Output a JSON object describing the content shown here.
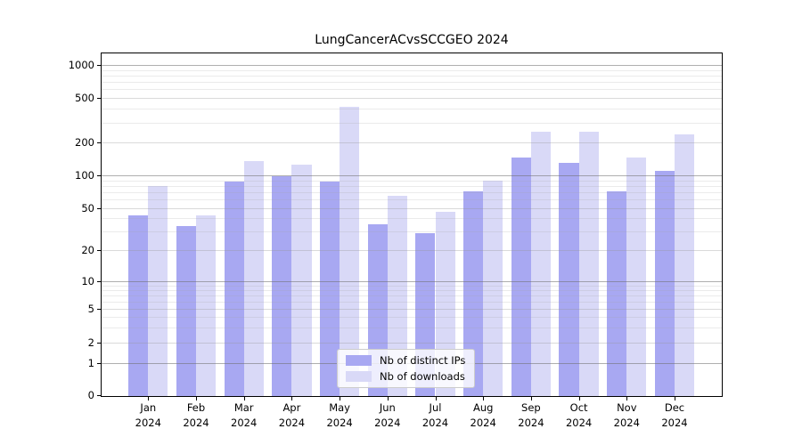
{
  "chart_data": {
    "type": "bar",
    "title": "LungCancerACvsSCCGEO 2024",
    "x": {
      "months": [
        "Jan",
        "Feb",
        "Mar",
        "Apr",
        "May",
        "Jun",
        "Jul",
        "Aug",
        "Sep",
        "Oct",
        "Nov",
        "Dec"
      ],
      "year": "2024"
    },
    "series": [
      {
        "name": "Nb of distinct IPs",
        "color": "#a8a8f2",
        "values": [
          43,
          34,
          88,
          99,
          88,
          35,
          29,
          71,
          147,
          130,
          72,
          110
        ]
      },
      {
        "name": "Nb of downloads",
        "color": "#d9d9f7",
        "values": [
          80,
          43,
          136,
          125,
          415,
          65,
          46,
          90,
          250,
          252,
          146,
          238
        ]
      }
    ],
    "y_axis": {
      "scale": "symlog",
      "ticks": [
        0,
        1,
        2,
        5,
        10,
        20,
        50,
        100,
        200,
        500,
        1000
      ],
      "tick_labels": [
        "0",
        "1",
        "2",
        "5",
        "10",
        "20",
        "50",
        "100",
        "200",
        "500",
        "1000"
      ],
      "ylim": [
        0,
        1000
      ]
    },
    "legend": {
      "position": "lower center",
      "items": [
        {
          "label": "Nb of distinct IPs",
          "color": "#a8a8f2"
        },
        {
          "label": "Nb of downloads",
          "color": "#d9d9f7"
        }
      ]
    },
    "grid": true,
    "background": "#ffffff"
  }
}
